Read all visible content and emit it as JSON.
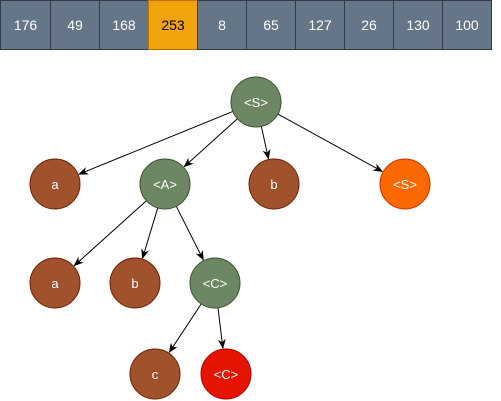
{
  "array": {
    "cells": [
      {
        "value": "176",
        "highlight": false
      },
      {
        "value": "49",
        "highlight": false
      },
      {
        "value": "168",
        "highlight": false
      },
      {
        "value": "253",
        "highlight": true
      },
      {
        "value": "8",
        "highlight": false
      },
      {
        "value": "65",
        "highlight": false
      },
      {
        "value": "127",
        "highlight": false
      },
      {
        "value": "26",
        "highlight": false
      },
      {
        "value": "130",
        "highlight": false
      },
      {
        "value": "100",
        "highlight": false
      }
    ]
  },
  "colors": {
    "nonterminal": "#6d8764",
    "terminal": "#a0522d",
    "orange": "#fa6800",
    "red": "#e51400",
    "cell": "#647687",
    "cell_highlight": "#f0a30a"
  },
  "tree": {
    "nodes": [
      {
        "id": "S0",
        "label": "<S>",
        "kind": "nonterminal"
      },
      {
        "id": "a1",
        "label": "a",
        "kind": "terminal"
      },
      {
        "id": "A1",
        "label": "<A>",
        "kind": "nonterminal"
      },
      {
        "id": "b1",
        "label": "b",
        "kind": "terminal"
      },
      {
        "id": "S1",
        "label": "<S>",
        "kind": "orange"
      },
      {
        "id": "a2",
        "label": "a",
        "kind": "terminal"
      },
      {
        "id": "b2",
        "label": "b",
        "kind": "terminal"
      },
      {
        "id": "C1",
        "label": "<C>",
        "kind": "nonterminal"
      },
      {
        "id": "c1",
        "label": "c",
        "kind": "terminal"
      },
      {
        "id": "C2",
        "label": "<C>",
        "kind": "red"
      }
    ],
    "edges": [
      [
        "S0",
        "a1"
      ],
      [
        "S0",
        "A1"
      ],
      [
        "S0",
        "b1"
      ],
      [
        "S0",
        "S1"
      ],
      [
        "A1",
        "a2"
      ],
      [
        "A1",
        "b2"
      ],
      [
        "A1",
        "C1"
      ],
      [
        "C1",
        "c1"
      ],
      [
        "C1",
        "C2"
      ]
    ]
  }
}
